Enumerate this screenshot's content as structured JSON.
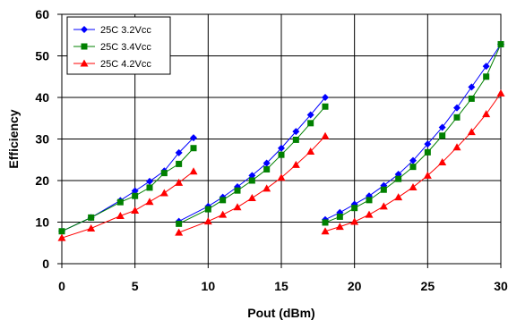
{
  "chart_data": {
    "type": "line",
    "xlabel": "Pout (dBm)",
    "ylabel": "Efficiency",
    "xlim": [
      0,
      30
    ],
    "ylim": [
      0,
      60
    ],
    "xticks": [
      "0",
      "5",
      "10",
      "15",
      "20",
      "25",
      "30"
    ],
    "yticks": [
      "0",
      "10",
      "20",
      "30",
      "40",
      "50",
      "60"
    ],
    "grid": true,
    "legend_position": "top-left",
    "series": [
      {
        "name": "25C 3.2Vcc",
        "color": "#0000FF",
        "marker": "diamond",
        "segments": [
          [
            [
              0,
              7.8
            ],
            [
              2,
              11.1
            ],
            [
              4,
              15.2
            ],
            [
              5,
              17.5
            ],
            [
              6,
              19.8
            ],
            [
              7,
              22.3
            ],
            [
              8,
              26.7
            ],
            [
              9,
              30.3
            ]
          ],
          [
            [
              8,
              10.2
            ],
            [
              10,
              13.8
            ],
            [
              11,
              16.0
            ],
            [
              12,
              18.5
            ],
            [
              13,
              21.2
            ],
            [
              14,
              24.2
            ],
            [
              15,
              27.8
            ],
            [
              16,
              31.8
            ],
            [
              17,
              35.8
            ],
            [
              18,
              40.0
            ]
          ],
          [
            [
              18,
              10.6
            ],
            [
              19,
              12.3
            ],
            [
              20,
              14.3
            ],
            [
              21,
              16.3
            ],
            [
              22,
              18.8
            ],
            [
              23,
              21.5
            ],
            [
              24,
              24.8
            ],
            [
              25,
              28.8
            ],
            [
              26,
              32.8
            ],
            [
              27,
              37.5
            ],
            [
              28,
              42.5
            ],
            [
              29,
              47.5
            ],
            [
              30,
              52.8
            ]
          ]
        ]
      },
      {
        "name": "25C 3.4Vcc",
        "color": "#008000",
        "marker": "square",
        "segments": [
          [
            [
              0,
              7.8
            ],
            [
              2,
              11.1
            ],
            [
              4,
              14.8
            ],
            [
              5,
              16.3
            ],
            [
              6,
              18.3
            ],
            [
              7,
              21.8
            ],
            [
              8,
              24.0
            ],
            [
              9,
              27.8
            ]
          ],
          [
            [
              8,
              9.6
            ],
            [
              10,
              13.1
            ],
            [
              11,
              15.3
            ],
            [
              12,
              17.6
            ],
            [
              13,
              20.0
            ],
            [
              14,
              22.7
            ],
            [
              15,
              26.2
            ],
            [
              16,
              29.8
            ],
            [
              17,
              33.8
            ],
            [
              18,
              37.8
            ]
          ],
          [
            [
              18,
              9.9
            ],
            [
              19,
              11.3
            ],
            [
              20,
              13.4
            ],
            [
              21,
              15.3
            ],
            [
              22,
              17.8
            ],
            [
              23,
              20.4
            ],
            [
              24,
              23.3
            ],
            [
              25,
              26.8
            ],
            [
              26,
              30.8
            ],
            [
              27,
              35.2
            ],
            [
              28,
              39.7
            ],
            [
              29,
              45.0
            ],
            [
              30,
              52.8
            ]
          ]
        ]
      },
      {
        "name": "25C 4.2Vcc",
        "color": "#FF0000",
        "marker": "triangle",
        "segments": [
          [
            [
              0,
              6.2
            ],
            [
              2,
              8.5
            ],
            [
              4,
              11.5
            ],
            [
              5,
              12.8
            ],
            [
              6,
              14.9
            ],
            [
              7,
              17.0
            ],
            [
              8,
              19.5
            ],
            [
              9,
              22.2
            ]
          ],
          [
            [
              8,
              7.5
            ],
            [
              10,
              10.2
            ],
            [
              11,
              11.8
            ],
            [
              12,
              13.6
            ],
            [
              13,
              15.8
            ],
            [
              14,
              18.1
            ],
            [
              15,
              20.7
            ],
            [
              16,
              23.8
            ],
            [
              17,
              27.0
            ],
            [
              18,
              30.7
            ]
          ],
          [
            [
              18,
              7.8
            ],
            [
              19,
              8.9
            ],
            [
              20,
              10.1
            ],
            [
              21,
              11.8
            ],
            [
              22,
              13.8
            ],
            [
              23,
              16.0
            ],
            [
              24,
              18.4
            ],
            [
              25,
              21.2
            ],
            [
              26,
              24.4
            ],
            [
              27,
              28.0
            ],
            [
              28,
              31.7
            ],
            [
              29,
              36.0
            ],
            [
              30,
              41.0
            ]
          ]
        ]
      }
    ]
  }
}
